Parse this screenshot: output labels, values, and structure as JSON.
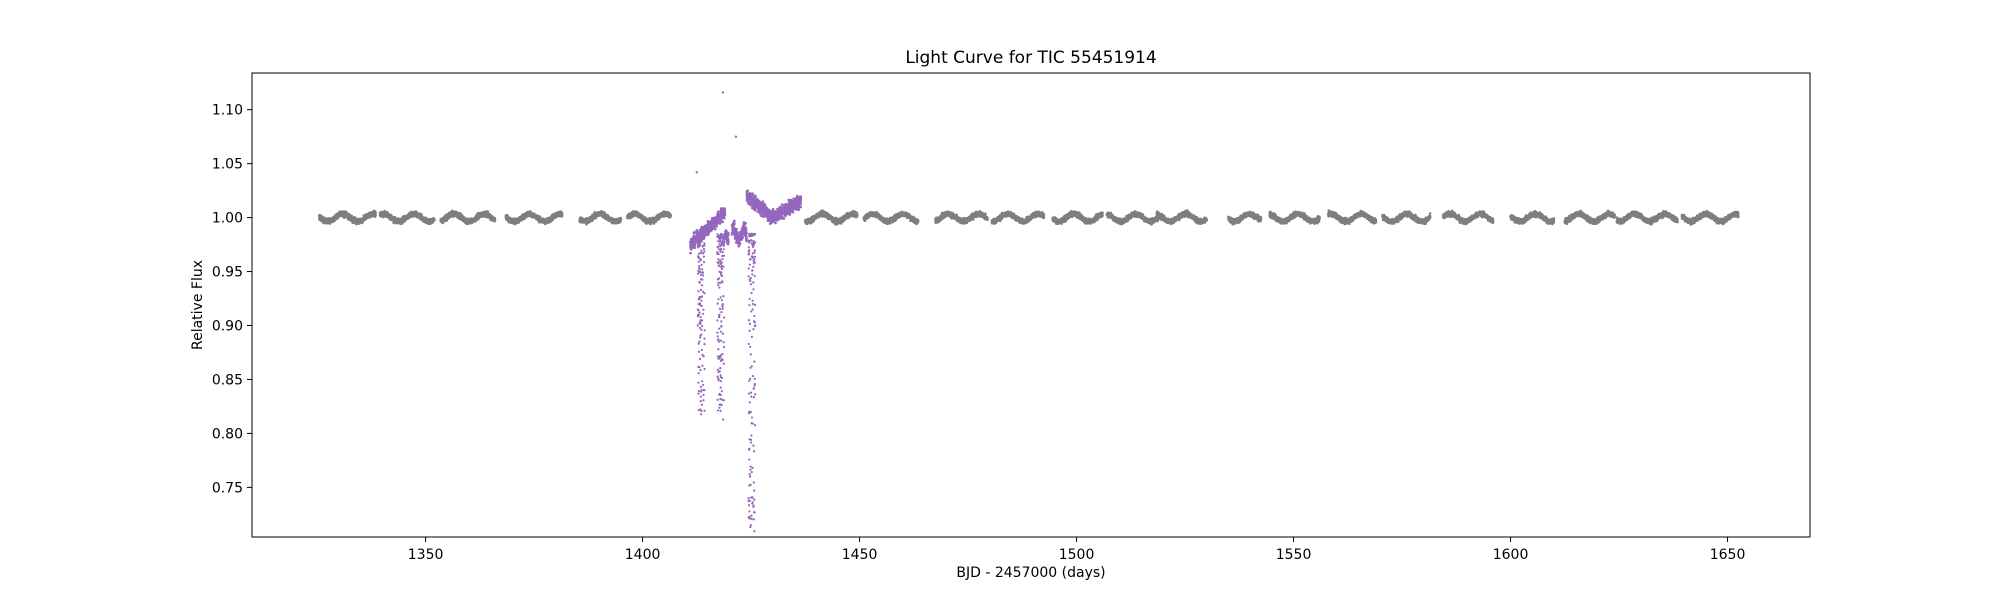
{
  "chart_data": {
    "type": "scatter",
    "title": "Light Curve for TIC 55451914",
    "xlabel": "BJD - 2457000 (days)",
    "ylabel": "Relative Flux",
    "xlim": [
      1310,
      1669
    ],
    "ylim": [
      0.704,
      1.134
    ],
    "xticks": [
      1350,
      1400,
      1450,
      1500,
      1550,
      1600,
      1650
    ],
    "yticks": [
      0.75,
      0.8,
      0.85,
      0.9,
      0.95,
      1.0,
      1.05,
      1.1
    ],
    "grid": false,
    "legend": "none",
    "colors": {
      "baseline": "#7f7f7f",
      "event": "#9467bd"
    },
    "baseline_segments": [
      [
        1325.5,
        1338.5
      ],
      [
        1339.5,
        1352.0
      ],
      [
        1353.5,
        1366.0
      ],
      [
        1368.5,
        1381.5
      ],
      [
        1385.5,
        1395.0
      ],
      [
        1396.5,
        1406.5
      ],
      [
        1437.5,
        1449.5
      ],
      [
        1451.0,
        1463.5
      ],
      [
        1467.5,
        1479.5
      ],
      [
        1480.5,
        1492.5
      ],
      [
        1494.5,
        1506.0
      ],
      [
        1507.0,
        1519.0
      ],
      [
        1518.5,
        1530.0
      ],
      [
        1535.0,
        1542.5
      ],
      [
        1544.5,
        1556.0
      ],
      [
        1558.0,
        1569.0
      ],
      [
        1570.5,
        1581.5
      ],
      [
        1584.5,
        1596.0
      ],
      [
        1600.0,
        1610.0
      ],
      [
        1612.5,
        1624.0
      ],
      [
        1624.5,
        1638.5
      ],
      [
        1639.5,
        1652.5
      ]
    ],
    "event_window": [
      1411.0,
      1436.5
    ],
    "event_dips": [
      {
        "x": 1413.5,
        "y_min": 0.826
      },
      {
        "x": 1418.0,
        "y_min": 0.825
      },
      {
        "x": 1425.2,
        "y_min": 0.722
      }
    ],
    "outliers": [
      {
        "x": 1418.5,
        "y": 1.116
      },
      {
        "x": 1421.5,
        "y": 1.075
      },
      {
        "x": 1412.5,
        "y": 1.042
      }
    ]
  }
}
